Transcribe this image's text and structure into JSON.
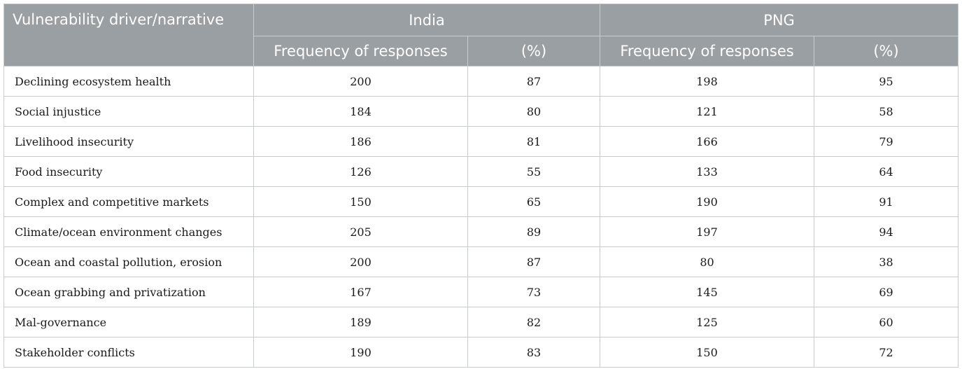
{
  "header": {
    "driver_label": "Vulnerability driver/narrative",
    "groups": [
      {
        "name": "India",
        "freq_label": "Frequency of responses",
        "pct_label": "(%)"
      },
      {
        "name": "PNG",
        "freq_label": "Frequency of responses",
        "pct_label": "(%)"
      }
    ]
  },
  "rows": [
    {
      "driver": "Declining ecosystem health",
      "india_freq": "200",
      "india_pct": "87",
      "png_freq": "198",
      "png_pct": "95"
    },
    {
      "driver": "Social injustice",
      "india_freq": "184",
      "india_pct": "80",
      "png_freq": "121",
      "png_pct": "58"
    },
    {
      "driver": "Livelihood insecurity",
      "india_freq": "186",
      "india_pct": "81",
      "png_freq": "166",
      "png_pct": "79"
    },
    {
      "driver": "Food insecurity",
      "india_freq": "126",
      "india_pct": "55",
      "png_freq": "133",
      "png_pct": "64"
    },
    {
      "driver": "Complex and competitive markets",
      "india_freq": "150",
      "india_pct": "65",
      "png_freq": "190",
      "png_pct": "91"
    },
    {
      "driver": "Climate/ocean environment changes",
      "india_freq": "205",
      "india_pct": "89",
      "png_freq": "197",
      "png_pct": "94"
    },
    {
      "driver": "Ocean and coastal pollution, erosion",
      "india_freq": "200",
      "india_pct": "87",
      "png_freq": "80",
      "png_pct": "38"
    },
    {
      "driver": "Ocean grabbing and privatization",
      "india_freq": "167",
      "india_pct": "73",
      "png_freq": "145",
      "png_pct": "69"
    },
    {
      "driver": "Mal-governance",
      "india_freq": "189",
      "india_pct": "82",
      "png_freq": "125",
      "png_pct": "60"
    },
    {
      "driver": "Stakeholder conflicts",
      "india_freq": "190",
      "india_pct": "83",
      "png_freq": "150",
      "png_pct": "72"
    }
  ]
}
